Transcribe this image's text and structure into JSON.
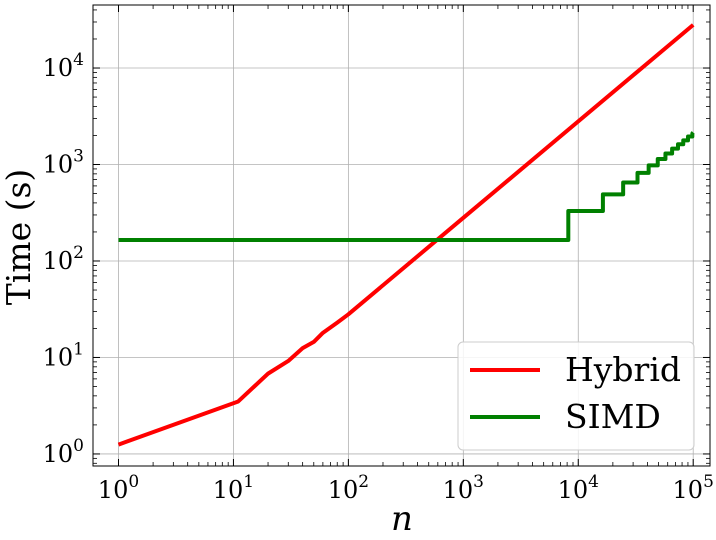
{
  "chart_data": {
    "type": "line",
    "title": "",
    "xlabel": "n",
    "ylabel": "Time (s)",
    "xscale": "log",
    "yscale": "log",
    "xlim": [
      0.6,
      140000
    ],
    "ylim": [
      0.75,
      45000
    ],
    "grid": true,
    "legend_position": "lower-right",
    "x_ticks": [
      {
        "base": "10",
        "exp": "0",
        "value": 1
      },
      {
        "base": "10",
        "exp": "1",
        "value": 10
      },
      {
        "base": "10",
        "exp": "2",
        "value": 100
      },
      {
        "base": "10",
        "exp": "3",
        "value": 1000
      },
      {
        "base": "10",
        "exp": "4",
        "value": 10000
      },
      {
        "base": "10",
        "exp": "5",
        "value": 100000
      }
    ],
    "y_ticks": [
      {
        "base": "10",
        "exp": "0",
        "value": 1
      },
      {
        "base": "10",
        "exp": "1",
        "value": 10
      },
      {
        "base": "10",
        "exp": "2",
        "value": 100
      },
      {
        "base": "10",
        "exp": "3",
        "value": 1000
      },
      {
        "base": "10",
        "exp": "4",
        "value": 10000
      }
    ],
    "series": [
      {
        "name": "Hybrid",
        "color": "#ff0000",
        "step": false,
        "points": [
          [
            1,
            1.25
          ],
          [
            11,
            3.5
          ],
          [
            20,
            6.8
          ],
          [
            30,
            9.2
          ],
          [
            40,
            12.5
          ],
          [
            50,
            14.5
          ],
          [
            60,
            18
          ],
          [
            80,
            23
          ],
          [
            100,
            28
          ],
          [
            1000,
            280
          ],
          [
            100000,
            28000
          ]
        ]
      },
      {
        "name": "SIMD",
        "color": "#008000",
        "step": true,
        "points": [
          [
            1,
            165
          ],
          [
            8192,
            165
          ],
          [
            8192,
            330
          ],
          [
            16384,
            330
          ],
          [
            16384,
            490
          ],
          [
            24576,
            490
          ],
          [
            24576,
            650
          ],
          [
            32768,
            650
          ],
          [
            32768,
            820
          ],
          [
            40960,
            820
          ],
          [
            40960,
            980
          ],
          [
            49152,
            980
          ],
          [
            49152,
            1140
          ],
          [
            57344,
            1140
          ],
          [
            57344,
            1300
          ],
          [
            65536,
            1300
          ],
          [
            65536,
            1460
          ],
          [
            73728,
            1460
          ],
          [
            73728,
            1620
          ],
          [
            81920,
            1620
          ],
          [
            81920,
            1780
          ],
          [
            90112,
            1780
          ],
          [
            90112,
            1950
          ],
          [
            98304,
            1950
          ],
          [
            98304,
            2100
          ],
          [
            100000,
            2150
          ]
        ]
      }
    ]
  }
}
